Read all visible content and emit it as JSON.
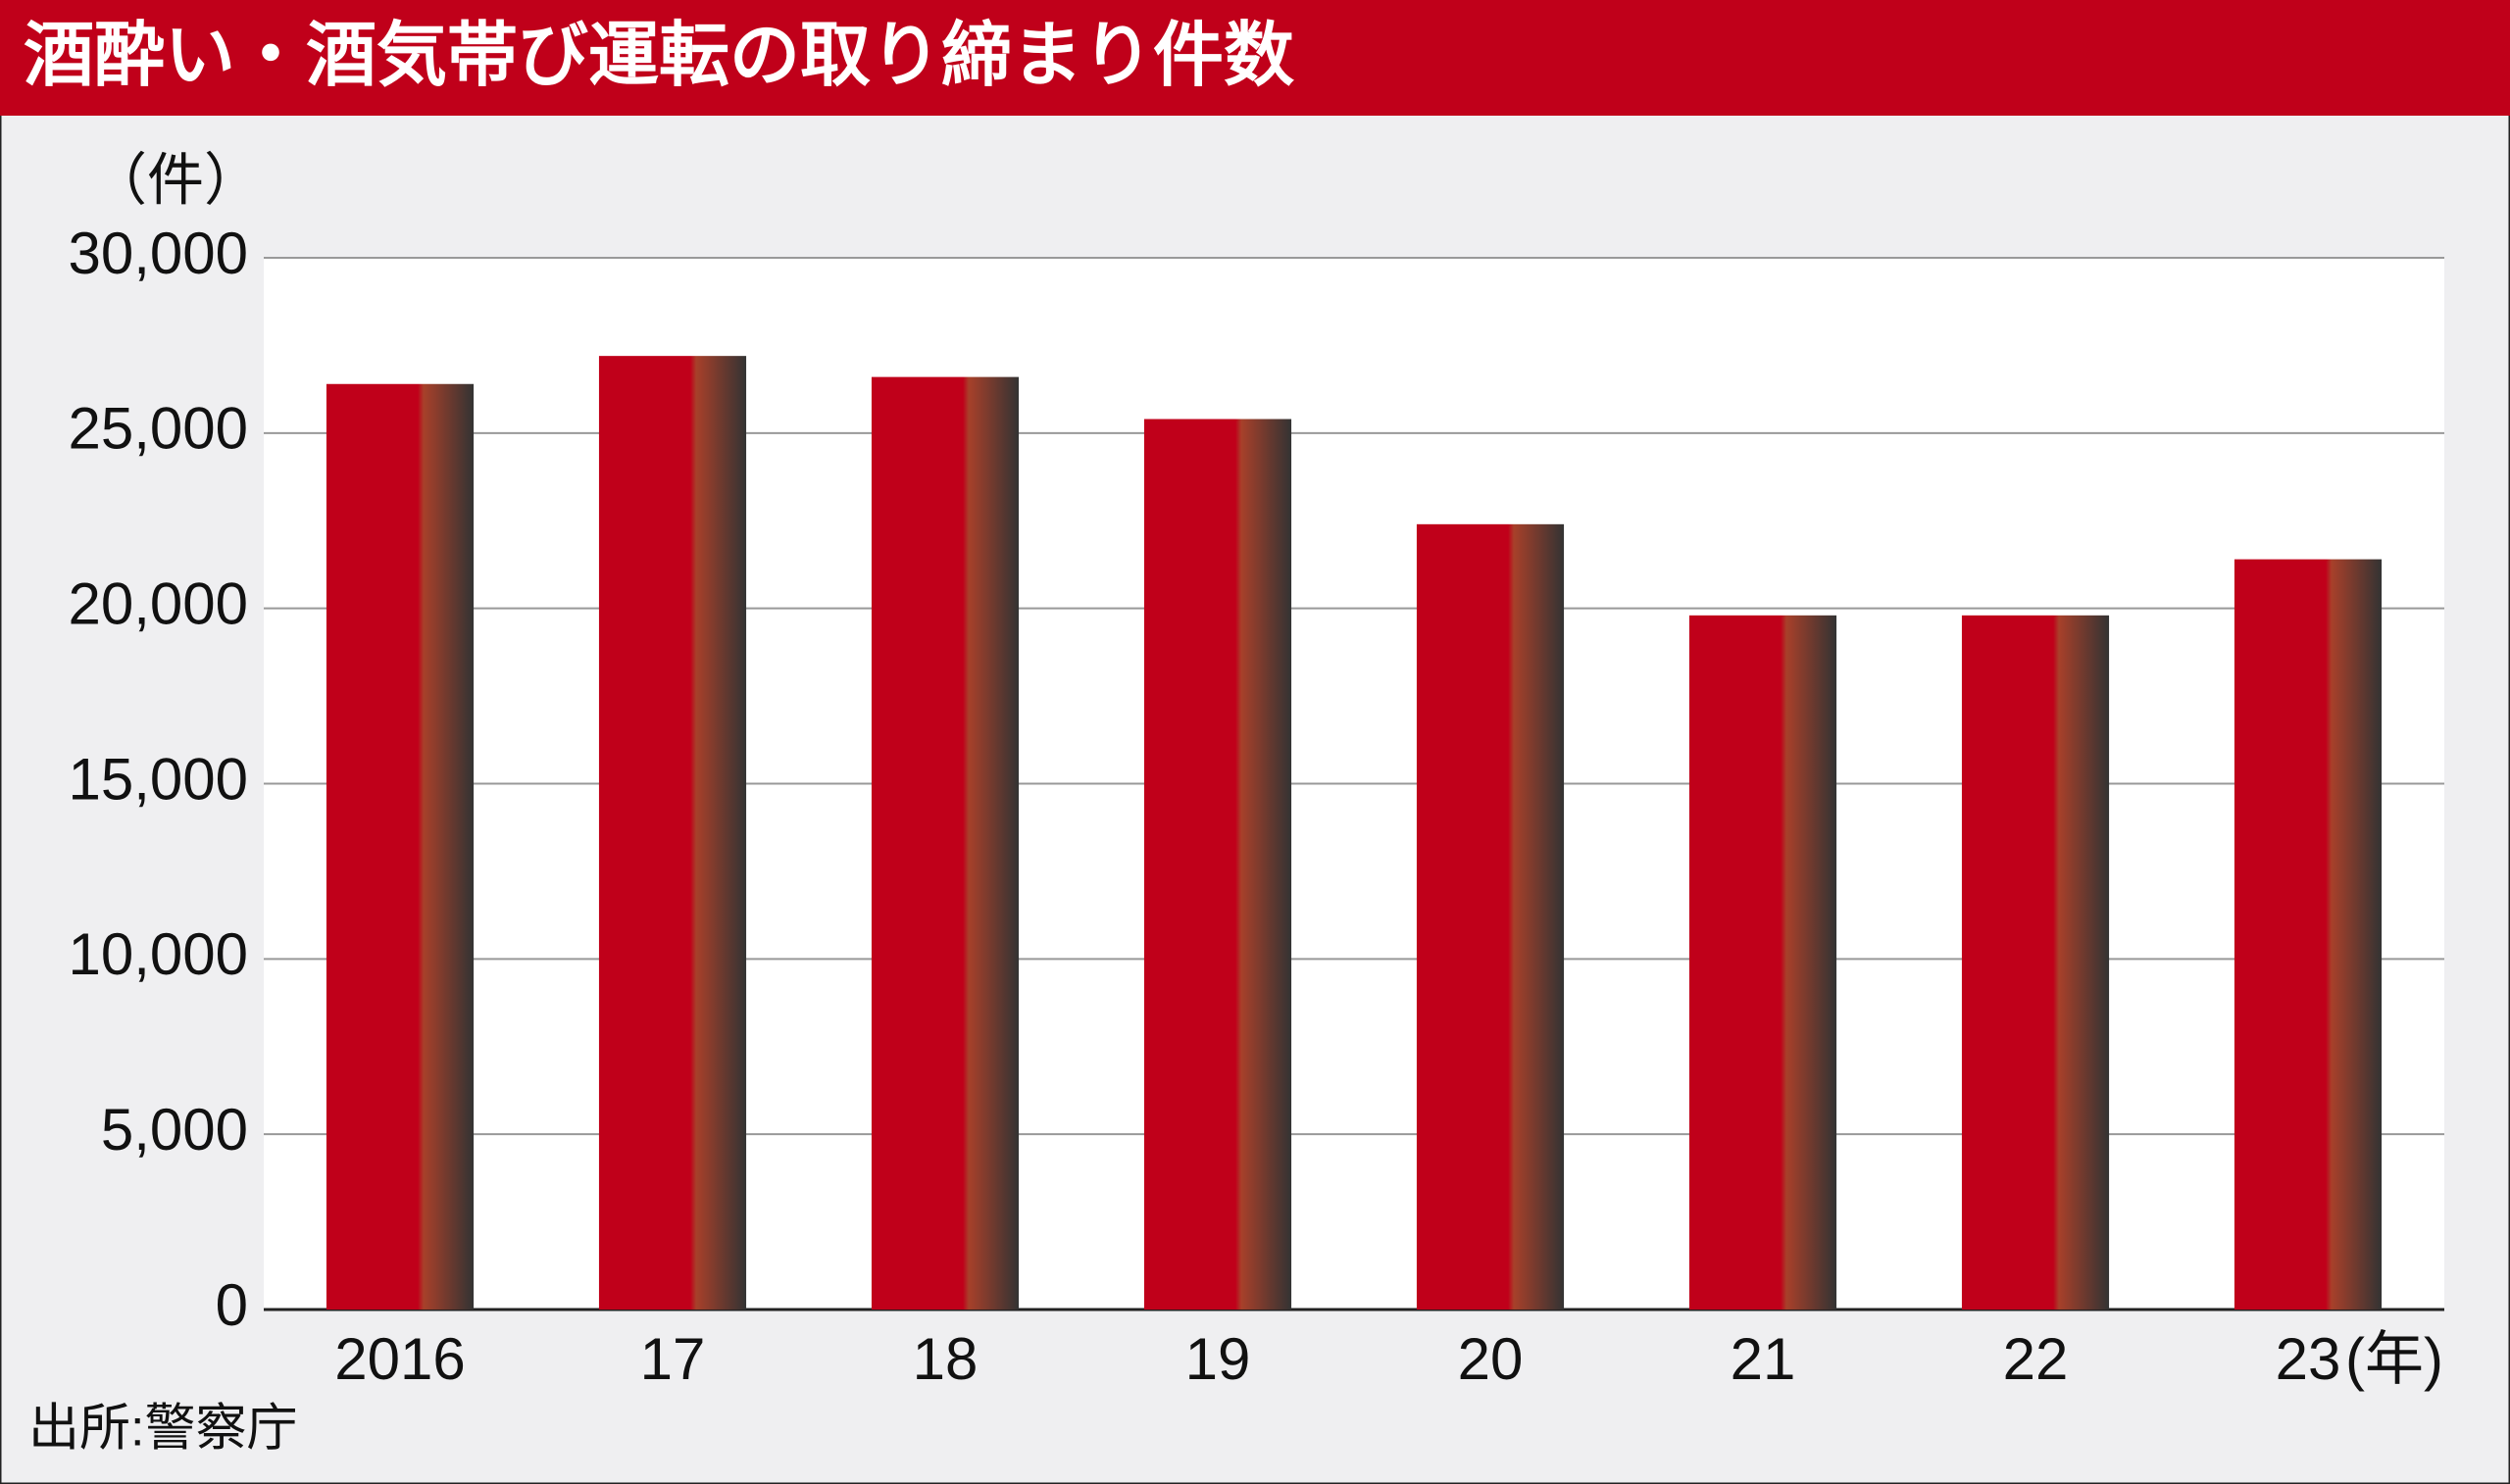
{
  "chart_data": {
    "type": "bar",
    "title": "酒酔い・酒気帯び運転の取り締まり件数",
    "y_unit": "（件）",
    "x_unit": "(年)",
    "source": "出所:警察庁",
    "categories": [
      "2016",
      "17",
      "18",
      "19",
      "20",
      "21",
      "22",
      "23"
    ],
    "values": [
      26400,
      27200,
      26600,
      25400,
      22400,
      19800,
      19800,
      21400
    ],
    "color": "#c0001a",
    "ylim": [
      0,
      30000
    ],
    "yticks": [
      0,
      {
        "value": 5000,
        "label": "5,000"
      },
      {
        "value": 10000,
        "label": "10,000"
      },
      {
        "value": 15000,
        "label": "15,000"
      },
      {
        "value": 20000,
        "label": "20,000"
      },
      {
        "value": 25000,
        "label": "25,000"
      },
      {
        "value": 30000,
        "label": "30,000"
      }
    ],
    "grid": true
  }
}
